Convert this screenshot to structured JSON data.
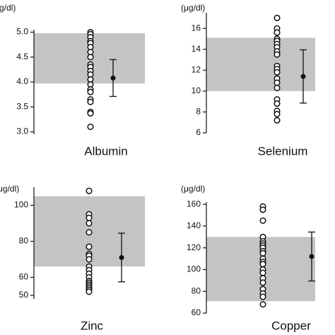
{
  "chart_data": [
    {
      "type": "scatter",
      "ylabel": "(g/dl)",
      "xlabel": "Albumin",
      "values": [
        5.0,
        4.96,
        4.9,
        4.82,
        4.78,
        4.7,
        4.6,
        4.5,
        4.35,
        4.3,
        4.22,
        4.15,
        4.05,
        3.95,
        3.85,
        3.8,
        3.65,
        3.6,
        3.4,
        3.37,
        3.1
      ],
      "reference_range": [
        3.97,
        4.98
      ],
      "mean": 4.08,
      "sd": 0.37,
      "ylim": [
        2.95,
        5.05
      ],
      "yticks": [
        {
          "value": 3,
          "label": "3.0"
        },
        3.5,
        {
          "value": 4,
          "label": "4.0"
        },
        4.5,
        {
          "value": 5,
          "label": "5.0"
        }
      ],
      "band_color": "#c4c4c4"
    },
    {
      "type": "scatter",
      "ylabel": "(μg/dl)",
      "xlabel": "Selenium",
      "values": [
        17,
        16,
        15.6,
        15,
        14.8,
        14.5,
        14.2,
        13.8,
        13.5,
        12.4,
        12.1,
        11.8,
        11.2,
        10.8,
        10.3,
        9.2,
        8.8,
        8.1,
        7.8,
        7.2
      ],
      "reference_range": [
        10,
        15.1
      ],
      "mean": 11.4,
      "sd": 2.55,
      "ylim": [
        6,
        17.5
      ],
      "yticks": [
        6,
        8,
        10,
        12,
        14,
        16
      ],
      "band_color": "#c4c4c4"
    },
    {
      "type": "scatter",
      "ylabel": "(μg/dl)",
      "xlabel": "Zinc",
      "values": [
        108,
        95,
        93,
        90,
        85,
        77,
        73,
        72,
        70,
        66,
        64,
        62,
        60,
        58,
        57,
        56,
        55,
        54,
        53,
        52
      ],
      "reference_range": [
        66,
        105
      ],
      "mean": 71,
      "sd": 13.5,
      "ylim": [
        48,
        110
      ],
      "yticks": [
        50,
        60,
        80,
        100
      ],
      "band_color": "#c4c4c4"
    },
    {
      "type": "scatter",
      "ylabel": "(μg/dl)",
      "xlabel": "Copper",
      "values": [
        158,
        155,
        145,
        130,
        126,
        124,
        122,
        120,
        117,
        115,
        110,
        107,
        105,
        100,
        97,
        92,
        88,
        82,
        78,
        75,
        68
      ],
      "reference_range": [
        71,
        130
      ],
      "mean": 112,
      "sd": 22.5,
      "ylim": [
        60,
        162
      ],
      "yticks": [
        60,
        80,
        100,
        120,
        140,
        160
      ],
      "band_color": "#c4c4c4"
    }
  ]
}
